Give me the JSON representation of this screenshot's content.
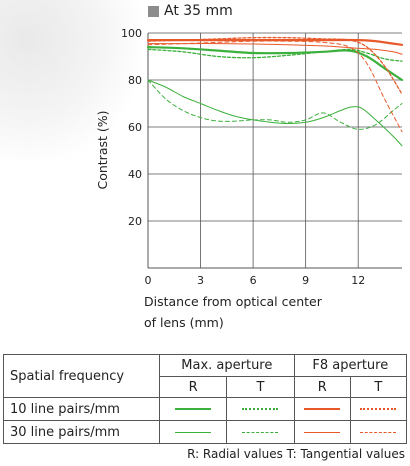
{
  "title": "At 35 mm",
  "colors": {
    "green": "#3cb03c",
    "orange": "#e8592a",
    "grid": "#555555",
    "marker": "#8c8c8c"
  },
  "chart_data": {
    "type": "line",
    "xlabel": "Distance from optical center of lens (mm)",
    "xlabel_lines": [
      "Distance from optical center",
      "of lens (mm)"
    ],
    "ylabel": "Contrast (%)",
    "xlim": [
      0,
      14.5
    ],
    "ylim": [
      0,
      100
    ],
    "xticks": [
      0,
      3,
      6,
      9,
      12
    ],
    "yticks": [
      20,
      40,
      60,
      80,
      100
    ],
    "grid": true,
    "series": [
      {
        "name": "10 line pairs/mm, Max. aperture, R",
        "color": "#3cb03c",
        "width": 2.2,
        "dash": "",
        "x": [
          0,
          2,
          4,
          6,
          8,
          10,
          11.5,
          12.5,
          13.5,
          14.5
        ],
        "y": [
          94,
          93.5,
          92.5,
          91.5,
          91.5,
          92,
          92.5,
          90,
          85,
          80
        ]
      },
      {
        "name": "10 line pairs/mm, Max. aperture, T",
        "color": "#3cb03c",
        "width": 1.3,
        "dash": "3 2",
        "x": [
          0,
          2,
          4,
          6,
          8,
          10,
          11.5,
          12.5,
          13.5,
          14.5
        ],
        "y": [
          93,
          92,
          90,
          89.5,
          90.5,
          92,
          93,
          91.5,
          89,
          88
        ]
      },
      {
        "name": "10 line pairs/mm, F8 aperture, R",
        "color": "#e8592a",
        "width": 2.2,
        "dash": "",
        "x": [
          0,
          2,
          4,
          6,
          8,
          10,
          12,
          13,
          14,
          14.5
        ],
        "y": [
          97,
          97,
          97,
          97,
          97,
          97,
          97,
          96.5,
          95.5,
          95
        ]
      },
      {
        "name": "10 line pairs/mm, F8 aperture, T",
        "color": "#e8592a",
        "width": 1.3,
        "dash": "3 2",
        "x": [
          0,
          2,
          4,
          6,
          8,
          10,
          11.5,
          12.5,
          13.5,
          14.5
        ],
        "y": [
          96.5,
          97,
          97.5,
          98,
          98,
          97.5,
          97,
          94,
          86,
          74
        ]
      },
      {
        "name": "30 line pairs/mm, Max. aperture, R",
        "color": "#3cb03c",
        "width": 1.0,
        "dash": "",
        "x": [
          0,
          1,
          2,
          3,
          4,
          5,
          6,
          7,
          8,
          9,
          10,
          11,
          11.6,
          12.2,
          13,
          14,
          14.5
        ],
        "y": [
          80,
          77,
          73,
          70,
          67,
          64.5,
          63,
          62,
          61.5,
          62,
          64,
          67,
          68.5,
          68,
          63,
          56,
          52
        ]
      },
      {
        "name": "30 line pairs/mm, Max. aperture, T",
        "color": "#3cb03c",
        "width": 1.0,
        "dash": "4 3",
        "x": [
          0,
          1,
          2,
          3,
          4,
          5,
          6,
          7,
          8,
          9,
          10,
          11,
          12,
          13,
          14,
          14.5
        ],
        "y": [
          80,
          72,
          67,
          64,
          62.5,
          62.5,
          63,
          63,
          62,
          63,
          66,
          62,
          59,
          61,
          67,
          70
        ]
      },
      {
        "name": "30 line pairs/mm, F8 aperture, R",
        "color": "#e8592a",
        "width": 1.0,
        "dash": "",
        "x": [
          0,
          2,
          4,
          6,
          8,
          10,
          12,
          13,
          14,
          14.5
        ],
        "y": [
          95.5,
          95.5,
          95.5,
          95.3,
          95,
          94.5,
          93.5,
          93,
          92,
          91
        ]
      },
      {
        "name": "30 line pairs/mm, F8 aperture, T",
        "color": "#e8592a",
        "width": 1.0,
        "dash": "4 3",
        "x": [
          0,
          2,
          4,
          6,
          8,
          10,
          11.5,
          12.5,
          13.5,
          14.5
        ],
        "y": [
          95,
          95.5,
          96,
          96.5,
          96.5,
          96,
          94,
          87,
          72,
          58
        ]
      }
    ]
  },
  "legend": {
    "header_spatial": "Spatial frequency",
    "header_max": "Max. aperture",
    "header_f8": "F8 aperture",
    "r": "R",
    "t": "T",
    "row10": "10 line pairs/mm",
    "row30": "30 line pairs/mm"
  },
  "footnote": "R: Radial values  T: Tangential values"
}
